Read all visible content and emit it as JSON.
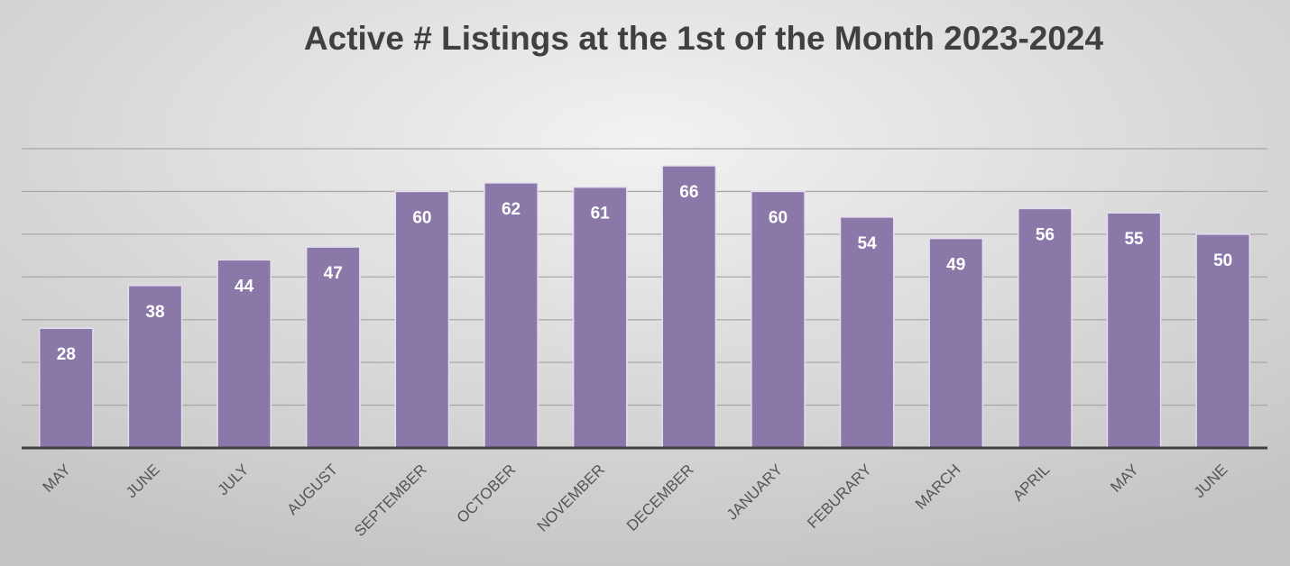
{
  "chart_data": {
    "type": "bar",
    "title": "Active # Listings at the 1st of the Month 2023-2024",
    "categories": [
      "MAY",
      "JUNE",
      "JULY",
      "AUGUST",
      "SEPTEMBER",
      "OCTOBER",
      "NOVEMBER",
      "DECEMBER",
      "JANUARY",
      "FEBURARY",
      "MARCH",
      "APRIL",
      "MAY",
      "JUNE"
    ],
    "values": [
      28,
      38,
      44,
      47,
      60,
      62,
      61,
      66,
      60,
      54,
      49,
      56,
      55,
      50
    ],
    "color": "#8a78a9",
    "ylim": [
      0,
      70
    ],
    "yticks": [
      0,
      10,
      20,
      30,
      40,
      50,
      60,
      70
    ],
    "grid": true
  }
}
